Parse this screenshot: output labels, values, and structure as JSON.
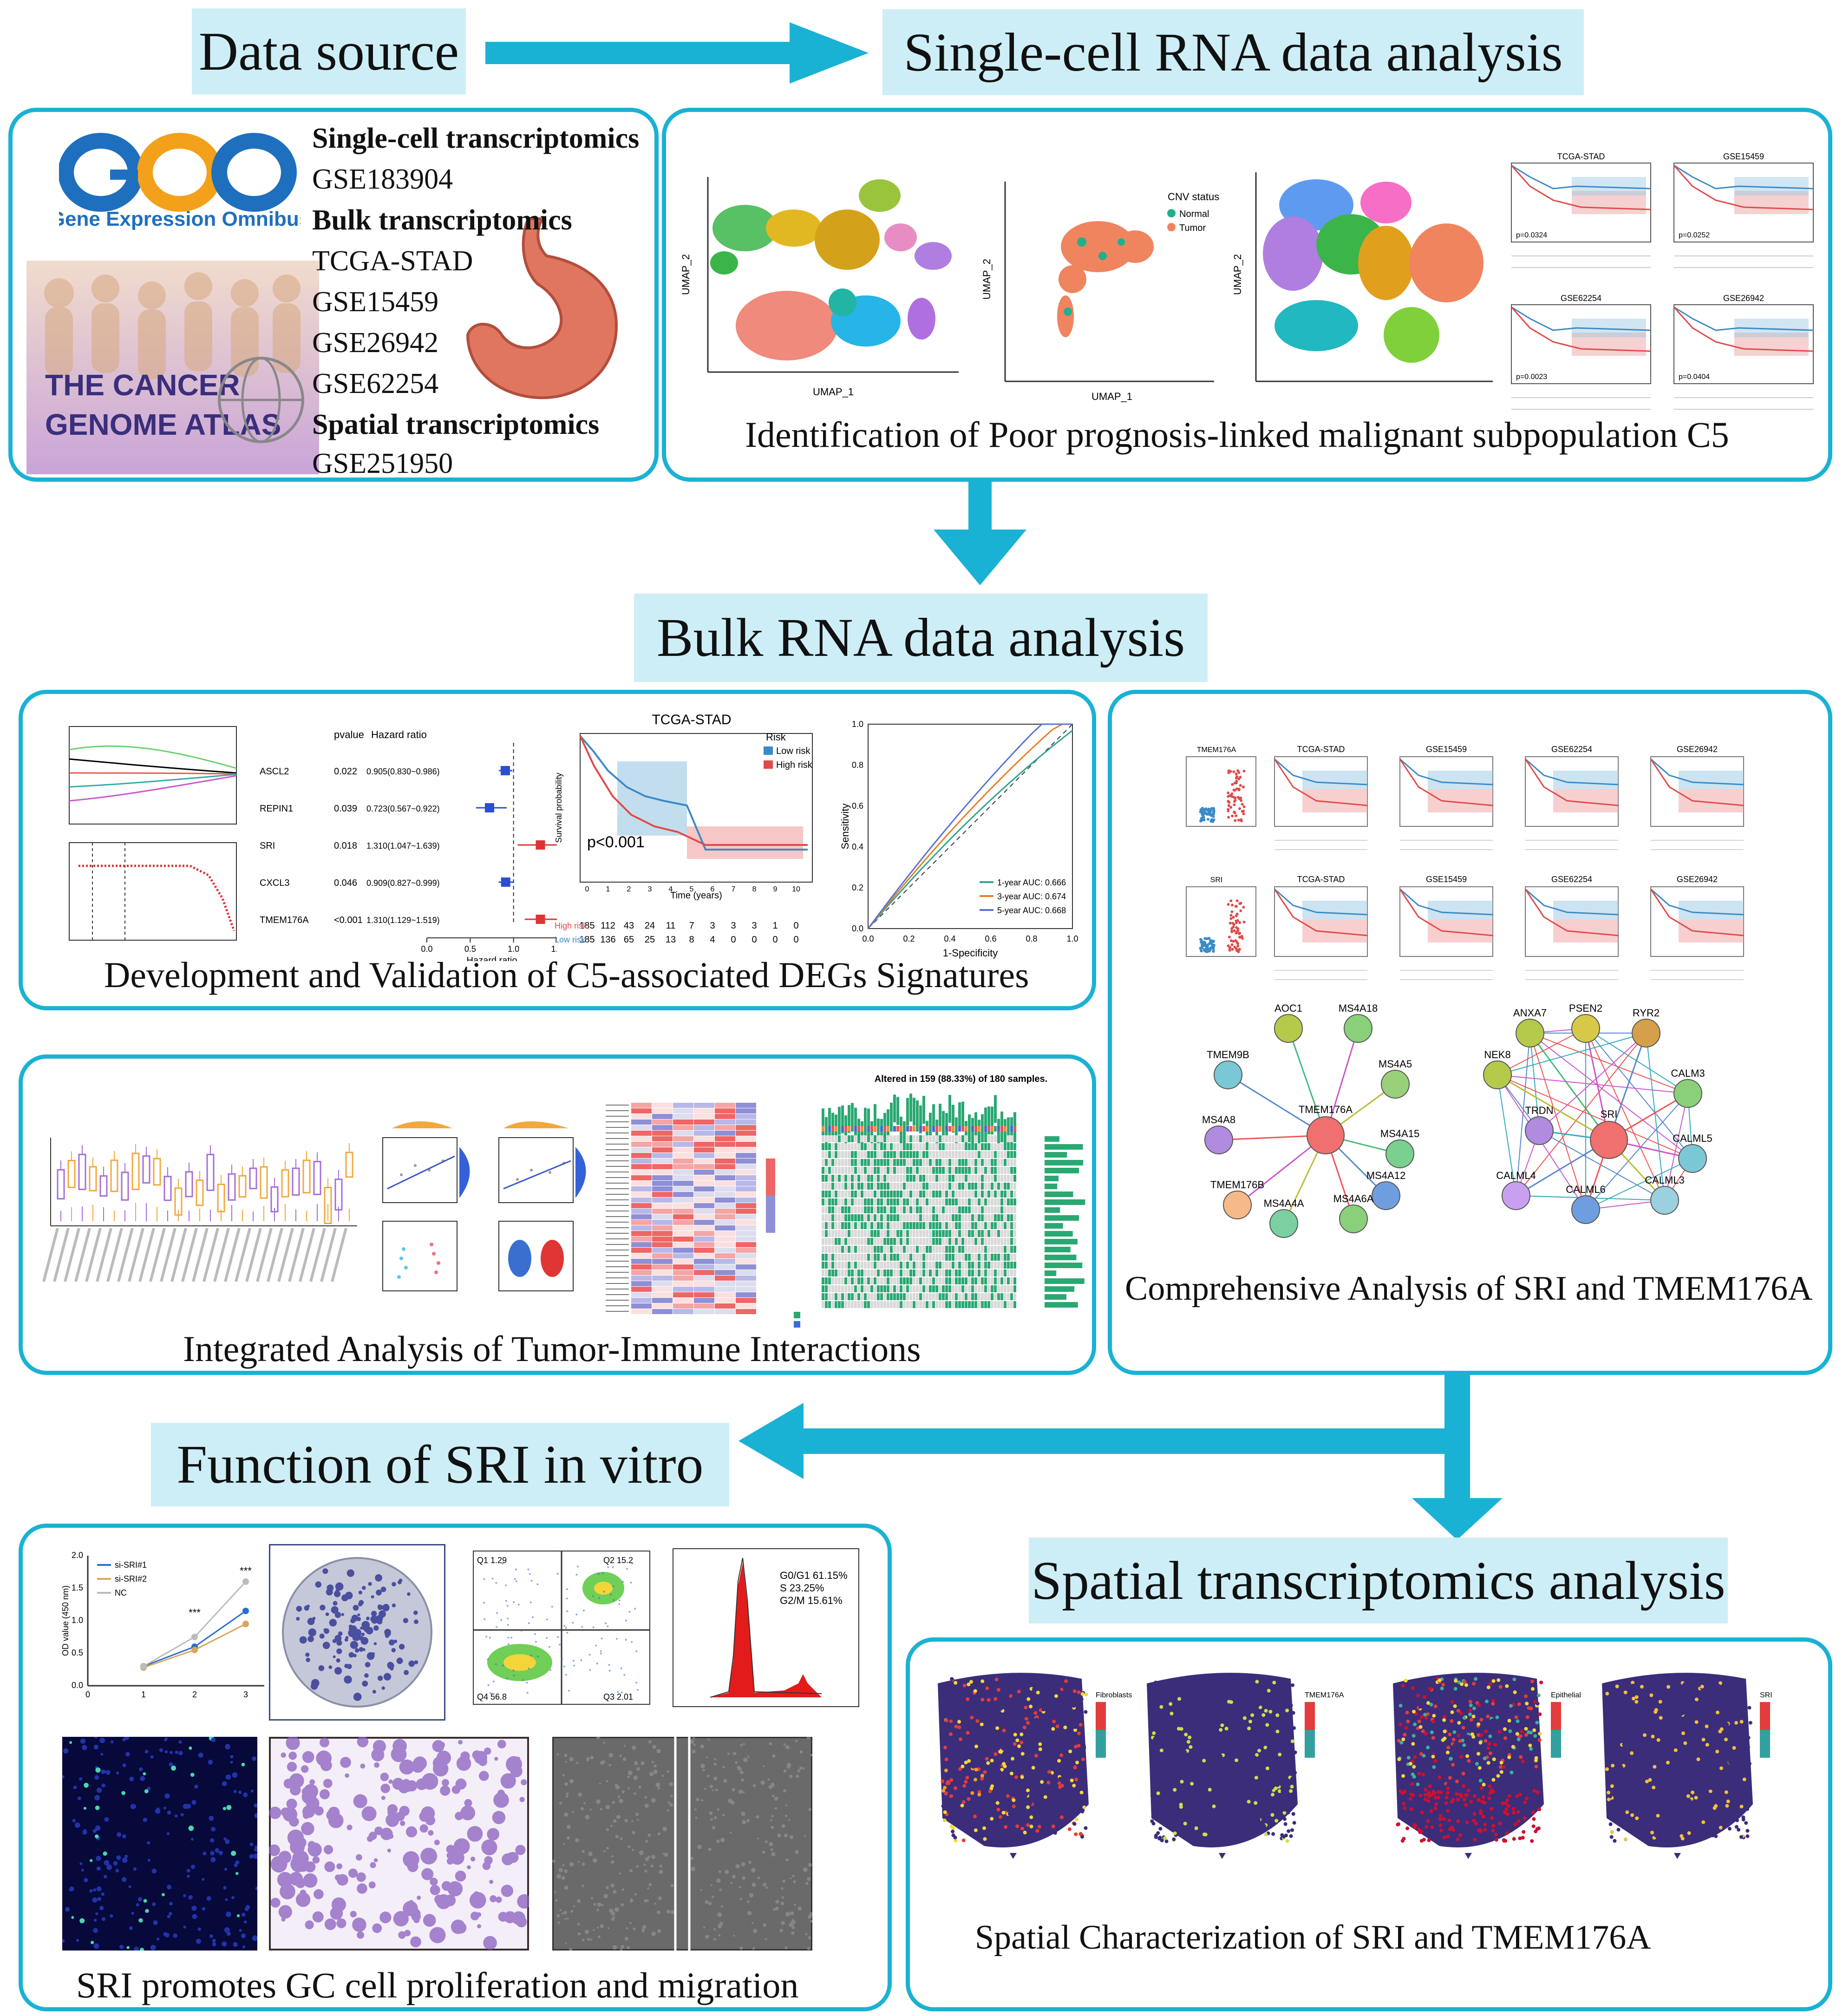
{
  "flow": {
    "data_source": "Data source",
    "single_cell": "Single-cell RNA data analysis",
    "bulk": "Bulk RNA data analysis",
    "function": "Function of SRI in vitro",
    "spatial": "Spatial transcriptomics analysis"
  },
  "data_source_panel": {
    "geo_logo_text": "GEO",
    "geo_name": "Gene Expression Omnibus",
    "tcga_line1": "THE CANCER",
    "tcga_line2": "GENOME ATLAS",
    "sc_heading": "Single-cell transcriptomics",
    "sc_item": "GSE183904",
    "bulk_heading": "Bulk transcriptomics",
    "bulk_items": [
      "TCGA-STAD",
      "GSE15459",
      "GSE26942",
      "GSE62254"
    ],
    "spatial_heading": "Spatial transcriptomics",
    "spatial_item": "GSE251950"
  },
  "single_cell_panel": {
    "caption": "Identification of Poor prognosis-linked malignant subpopulation C5",
    "umap_x": "UMAP_1",
    "umap_y": "UMAP_2",
    "cnv_title": "CNV status",
    "cnv_normal": "Normal",
    "cnv_tumor": "Tumor",
    "km_titles": [
      "TCGA-STAD",
      "GSE15459",
      "GSE62254",
      "GSE26942"
    ],
    "km_pvalues": [
      "p=0.0324",
      "p=0.0252",
      "p=0.0023",
      "p=0.0404"
    ]
  },
  "signature_panel": {
    "caption": "Development and Validation of C5-associated DEGs Signatures",
    "forest_header_p": "pvalue",
    "forest_header_hr": "Hazard ratio",
    "forest_rows": [
      {
        "gene": "ASCL2",
        "p": "0.022",
        "hr": "0.905(0.830~0.986)"
      },
      {
        "gene": "REPIN1",
        "p": "0.039",
        "hr": "0.723(0.567~0.922)"
      },
      {
        "gene": "SRI",
        "p": "0.018",
        "hr": "1.310(1.047~1.639)"
      },
      {
        "gene": "CXCL3",
        "p": "0.046",
        "hr": "0.909(0.827~0.999)"
      },
      {
        "gene": "TMEM176A",
        "p": "<0.001",
        "hr": "1.310(1.129~1.519)"
      }
    ],
    "forest_axis_label": "Hazard ratio",
    "km_title": "TCGA-STAD",
    "km_legend_title": "Risk",
    "km_low": "Low risk",
    "km_high": "High risk",
    "km_p": "p<0.001",
    "km_ylabel": "Survival probability",
    "km_xlabel": "Time (years)",
    "risk_table_high": [
      "185",
      "112",
      "43",
      "24",
      "11",
      "7",
      "3",
      "3",
      "3",
      "1",
      "0"
    ],
    "risk_table_low": [
      "185",
      "136",
      "65",
      "25",
      "13",
      "8",
      "4",
      "0",
      "0",
      "0",
      "0"
    ],
    "risk_table_high_label": "High risk",
    "risk_table_low_label": "Low risk",
    "roc_xlabel": "1-Specificity",
    "roc_ylabel": "Sensitivity",
    "roc_auc": [
      "1-year AUC: 0.666",
      "3-year AUC: 0.674",
      "5-year AUC: 0.668"
    ]
  },
  "comprehensive_panel": {
    "caption": "Comprehensive Analysis of  SRI and TMEM176A",
    "network1_nodes": [
      "AOC1",
      "MS4A18",
      "TMEM9B",
      "MS4A5",
      "MS4A8",
      "TMEM176A",
      "MS4A15",
      "TMEM176B",
      "MS4A12",
      "MS4A4A",
      "MS4A6A"
    ],
    "network2_nodes": [
      "ANXA7",
      "PSEN2",
      "RYR2",
      "NEK8",
      "CALM3",
      "TRDN",
      "SRI",
      "CALML5",
      "CALML4",
      "CALML3",
      "CALML6"
    ],
    "gene_labels": [
      "TMEM176A",
      "SRI"
    ]
  },
  "immune_panel": {
    "caption": "Integrated Analysis of Tumor-Immune Interactions",
    "oncoprint_title": "Altered in 159 (88.33%) of 180 samples."
  },
  "function_panel": {
    "caption": "SRI promotes GC cell proliferation and migration",
    "cck8_legend": [
      "si-SRI#1",
      "si-SRI#2",
      "NC"
    ],
    "cck8_ylabel": "OD value (450 nm)",
    "flow_quadrants": [
      "Q1 1.29",
      "Q2 15.2",
      "Q4 56.8",
      "Q3 2.01"
    ],
    "cell_cycle": [
      "G0/G1 61.15%",
      "S        23.25%",
      "G2/M  15.61%"
    ]
  },
  "spatial_panel": {
    "caption": "Spatial Characterization of SRI and TMEM176A",
    "map_labels": [
      "Fibroblasts",
      "TMEM176A",
      "Epithelial",
      "SRI"
    ]
  },
  "colors": {
    "accent": "#1ab2d4",
    "title_bg": "#cdeef6"
  }
}
